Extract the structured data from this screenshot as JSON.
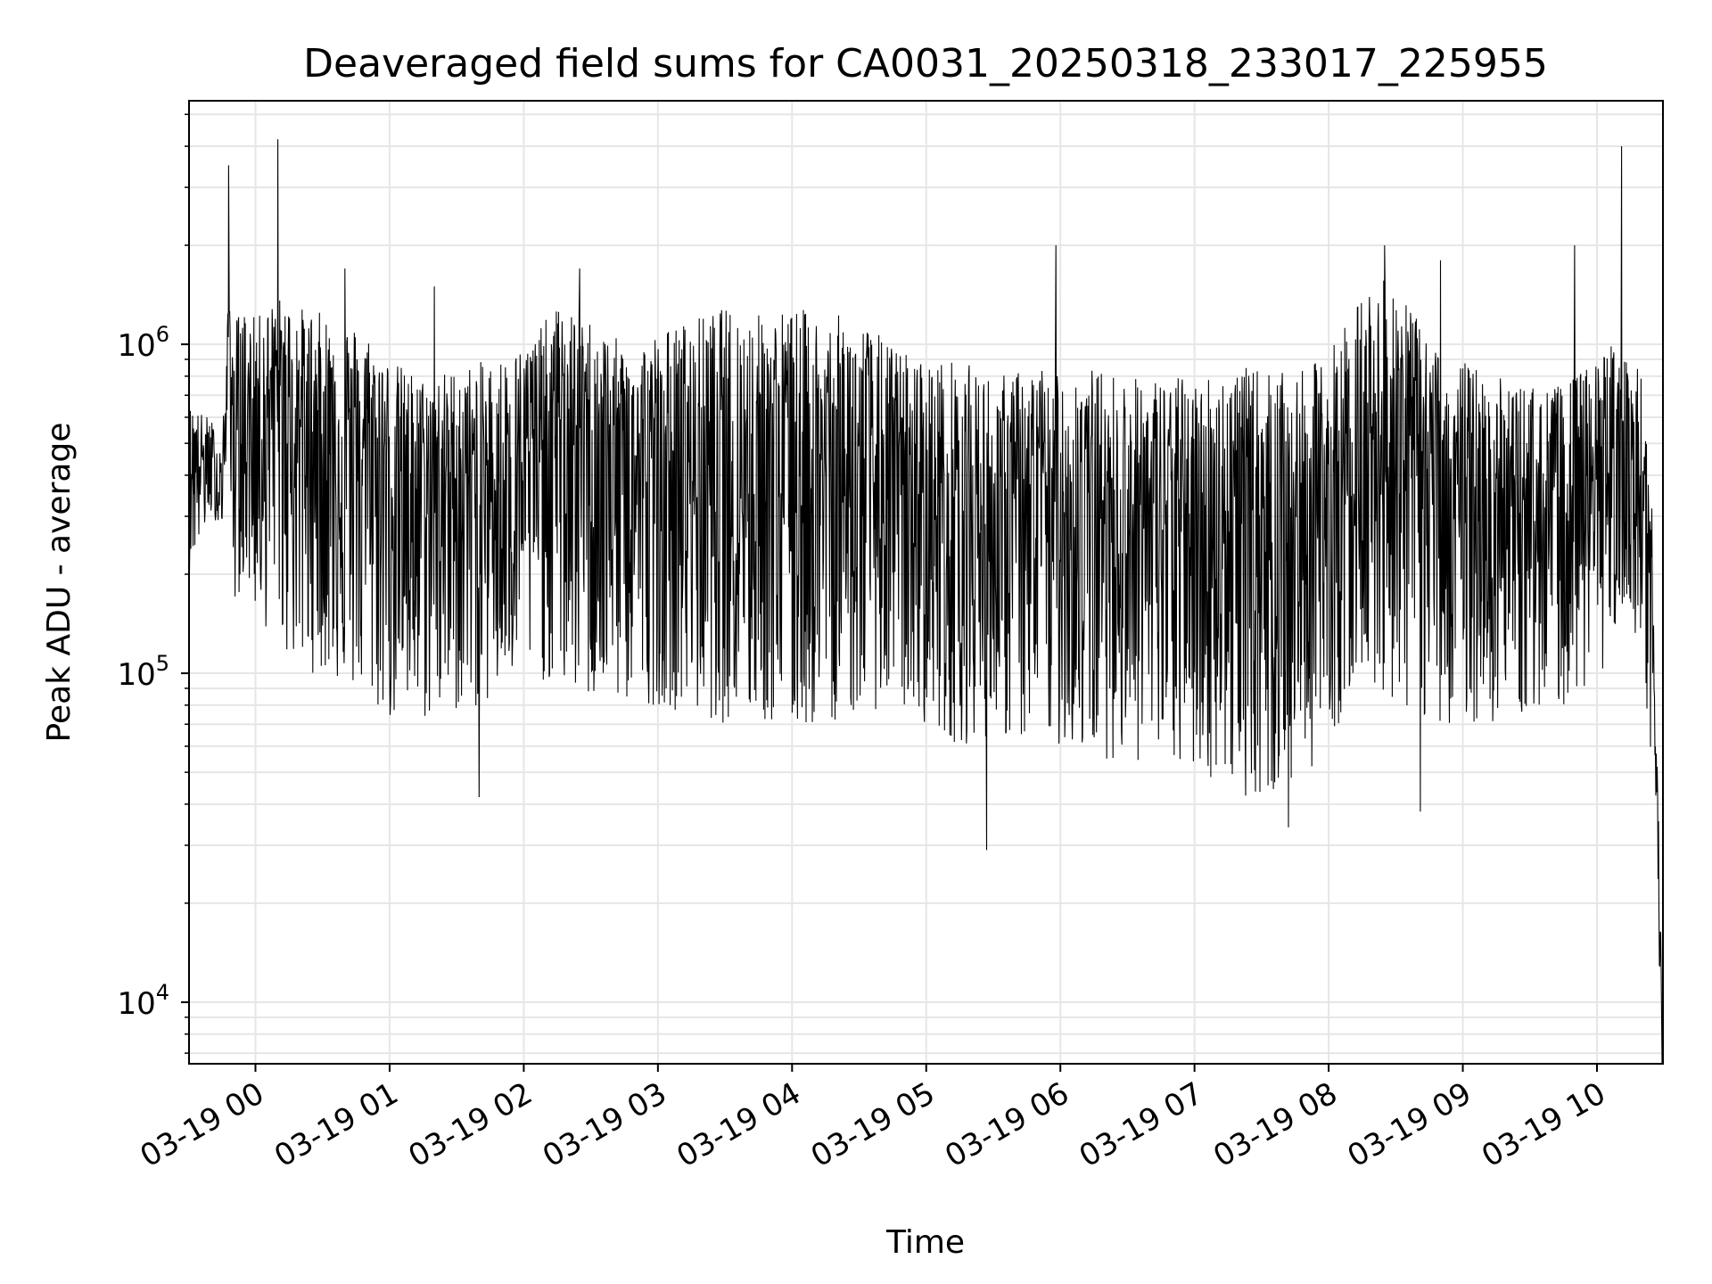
{
  "chart_data": {
    "type": "line",
    "title": "Deaveraged field sums for CA0031_20250318_233017_225955",
    "xlabel": "Time",
    "ylabel": "Peak ADU - average",
    "yscale": "log",
    "ylim": [
      6500,
      5500000
    ],
    "xlim": [
      "2025-03-18 23:30:17",
      "2025-03-19 10:29:31"
    ],
    "x_ticks": [
      "03-19 00",
      "03-19 01",
      "03-19 02",
      "03-19 03",
      "03-19 04",
      "03-19 05",
      "03-19 06",
      "03-19 07",
      "03-19 08",
      "03-19 09",
      "03-19 10"
    ],
    "y_ticks": [
      {
        "base": "10",
        "exp": "4"
      },
      {
        "base": "10",
        "exp": "5"
      },
      {
        "base": "10",
        "exp": "6"
      }
    ],
    "grid": true,
    "line_color": "#000000",
    "series": [
      {
        "x": [
          "2025-03-18 23:30",
          "2025-03-18 23:40",
          "2025-03-18 23:45",
          "2025-03-18 23:48",
          "2025-03-18 23:50",
          "2025-03-18 23:55",
          "2025-03-19 00:00",
          "2025-03-19 00:10",
          "2025-03-19 00:20",
          "2025-03-19 00:30",
          "2025-03-19 00:40",
          "2025-03-19 00:50",
          "2025-03-19 01:00",
          "2025-03-19 01:15",
          "2025-03-19 01:30",
          "2025-03-19 01:45",
          "2025-03-19 02:00",
          "2025-03-19 02:15",
          "2025-03-19 02:30",
          "2025-03-19 02:45",
          "2025-03-19 03:00",
          "2025-03-19 03:15",
          "2025-03-19 03:30",
          "2025-03-19 03:45",
          "2025-03-19 04:00",
          "2025-03-19 04:15",
          "2025-03-19 04:30",
          "2025-03-19 04:45",
          "2025-03-19 05:00",
          "2025-03-19 05:15",
          "2025-03-19 05:30",
          "2025-03-19 05:45",
          "2025-03-19 06:00",
          "2025-03-19 06:15",
          "2025-03-19 06:30",
          "2025-03-19 06:45",
          "2025-03-19 07:00",
          "2025-03-19 07:15",
          "2025-03-19 07:30",
          "2025-03-19 07:45",
          "2025-03-19 08:00",
          "2025-03-19 08:15",
          "2025-03-19 08:30",
          "2025-03-19 08:45",
          "2025-03-19 09:00",
          "2025-03-19 09:15",
          "2025-03-19 09:30",
          "2025-03-19 09:45",
          "2025-03-19 10:00",
          "2025-03-19 10:10",
          "2025-03-19 10:20",
          "2025-03-19 10:25",
          "2025-03-19 10:29"
        ],
        "y": [
          500000,
          420000,
          350000,
          1000000,
          600000,
          550000,
          650000,
          700000,
          600000,
          550000,
          500000,
          480000,
          420000,
          350000,
          400000,
          380000,
          450000,
          600000,
          500000,
          420000,
          400000,
          420000,
          450000,
          430000,
          420000,
          400000,
          380000,
          360000,
          330000,
          310000,
          300000,
          320000,
          330000,
          320000,
          310000,
          300000,
          290000,
          310000,
          300000,
          280000,
          320000,
          450000,
          600000,
          380000,
          330000,
          320000,
          310000,
          320000,
          350000,
          500000,
          330000,
          150000,
          9000
        ],
        "low": [
          200000,
          300000,
          280000,
          500000,
          150000,
          200000,
          150000,
          120000,
          100000,
          100000,
          90000,
          80000,
          70000,
          70000,
          75000,
          80000,
          100000,
          90000,
          80000,
          80000,
          80000,
          75000,
          70000,
          70000,
          65000,
          70000,
          75000,
          80000,
          70000,
          60000,
          65000,
          60000,
          60000,
          55000,
          55000,
          50000,
          50000,
          45000,
          40000,
          45000,
          60000,
          100000,
          80000,
          70000,
          70000,
          70000,
          75000,
          80000,
          90000,
          150000,
          100000,
          30000,
          9000
        ],
        "high": [
          650000,
          600000,
          500000,
          1400000,
          1200000,
          1300000,
          1200000,
          1400000,
          1300000,
          1250000,
          1200000,
          1100000,
          900000,
          800000,
          850000,
          900000,
          1000000,
          1300000,
          1200000,
          1000000,
          1100000,
          1200000,
          1300000,
          1250000,
          1300000,
          1250000,
          1200000,
          1000000,
          900000,
          900000,
          800000,
          850000,
          900000,
          850000,
          800000,
          800000,
          800000,
          850000,
          850000,
          800000,
          950000,
          1500000,
          1600000,
          1000000,
          900000,
          800000,
          750000,
          750000,
          900000,
          1100000,
          800000,
          300000,
          14000
        ]
      }
    ],
    "spikes": [
      {
        "x": "2025-03-18 23:48",
        "y": 3500000
      },
      {
        "x": "2025-03-19 00:10",
        "y": 4200000
      },
      {
        "x": "2025-03-19 00:40",
        "y": 1700000
      },
      {
        "x": "2025-03-19 01:20",
        "y": 1500000
      },
      {
        "x": "2025-03-19 02:25",
        "y": 1700000
      },
      {
        "x": "2025-03-19 05:58",
        "y": 2000000
      },
      {
        "x": "2025-03-19 08:25",
        "y": 2000000
      },
      {
        "x": "2025-03-19 08:50",
        "y": 1800000
      },
      {
        "x": "2025-03-19 09:50",
        "y": 2000000
      },
      {
        "x": "2025-03-19 10:11",
        "y": 4000000
      },
      {
        "x": "2025-03-19 05:27",
        "y": 29000
      },
      {
        "x": "2025-03-19 07:42",
        "y": 34000
      },
      {
        "x": "2025-03-19 01:40",
        "y": 42000
      },
      {
        "x": "2025-03-19 08:41",
        "y": 38000
      }
    ]
  }
}
